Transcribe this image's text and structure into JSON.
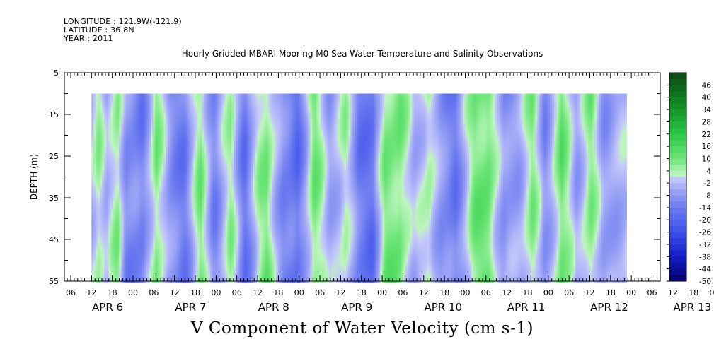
{
  "header": {
    "longitude": "LONGITUDE : 121.9W(-121.9)",
    "latitude": "LATITUDE : 36.8N",
    "year": "YEAR : 2011"
  },
  "chart_data": {
    "type": "heatmap",
    "title": "Hourly Gridded MBARI Mooring M0 Sea Water Temperature and Salinity Observations",
    "xlabel": "V Component of Water Velocity (cm s-1)",
    "ylabel": "DEPTH (m)",
    "ylim": [
      55,
      5
    ],
    "y_ticks": [
      5,
      15,
      25,
      35,
      45,
      55
    ],
    "hour_tick_labels": [
      "06",
      "12",
      "18",
      "00",
      "06",
      "12",
      "18",
      "00",
      "06",
      "12",
      "18",
      "00",
      "06",
      "12",
      "18",
      "00",
      "06",
      "12",
      "18",
      "00",
      "06",
      "12",
      "18",
      "00",
      "06",
      "12",
      "18",
      "00",
      "06",
      "12",
      "18",
      "00"
    ],
    "date_labels": [
      "APR  6",
      "APR  7",
      "APR  8",
      "APR  9",
      "APR 10",
      "APR 11",
      "APR 12",
      "APR 13"
    ],
    "data_depth_range": [
      10,
      55
    ],
    "colorbar": {
      "labels": [
        46,
        40,
        34,
        28,
        22,
        16,
        10,
        4,
        -2,
        -8,
        -14,
        -20,
        -26,
        -32,
        -38,
        -44,
        -50
      ],
      "min": -50,
      "max": 52,
      "step": 3,
      "colors": {
        "positive_dark": "#0a4a14",
        "positive_mid": "#22c040",
        "positive_light": "#b8f4b8",
        "negative_light": "#c0c4f8",
        "negative_mid": "#6a78f0",
        "negative_dark": "#00006a"
      }
    },
    "field_description": "Velocity field: alternating vertical bands of negative (blue, roughly -2 to -20) and positive (green, roughly 4 to 16) values across APR 6 - APR 12 2011, depth 10-55 m.",
    "band_values_by_day_fraction": [
      [
        0.0,
        6
      ],
      [
        0.15,
        -8
      ],
      [
        0.32,
        5
      ],
      [
        0.42,
        -6
      ],
      [
        0.55,
        8
      ],
      [
        0.66,
        -10
      ],
      [
        0.85,
        -14
      ],
      [
        1.02,
        9
      ],
      [
        1.18,
        -10
      ],
      [
        1.36,
        -14
      ],
      [
        1.55,
        8
      ],
      [
        1.72,
        -12
      ],
      [
        1.92,
        5
      ],
      [
        2.08,
        -16
      ],
      [
        2.25,
        3
      ],
      [
        2.35,
        9
      ],
      [
        2.55,
        -12
      ],
      [
        2.72,
        -18
      ],
      [
        2.92,
        10
      ],
      [
        3.1,
        -6
      ],
      [
        3.3,
        3
      ],
      [
        3.45,
        -14
      ],
      [
        3.62,
        -16
      ],
      [
        3.78,
        8
      ],
      [
        3.95,
        10
      ],
      [
        4.12,
        -6
      ],
      [
        4.3,
        5
      ],
      [
        4.45,
        -10
      ],
      [
        4.62,
        -14
      ],
      [
        4.85,
        8
      ],
      [
        5.02,
        12
      ],
      [
        5.2,
        -10
      ],
      [
        5.4,
        -4
      ],
      [
        5.55,
        7
      ],
      [
        5.7,
        -10
      ],
      [
        5.9,
        10
      ],
      [
        6.08,
        -6
      ],
      [
        6.25,
        8
      ],
      [
        6.4,
        -8
      ],
      [
        6.52,
        -4
      ]
    ]
  }
}
